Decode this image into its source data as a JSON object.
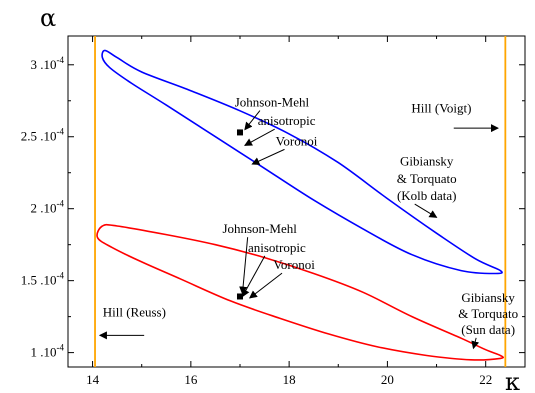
{
  "chart_data": {
    "type": "line",
    "xlabel": "κ",
    "ylabel": "α",
    "xlim": [
      13.5,
      22.8
    ],
    "ylim": [
      9e-05,
      0.00032
    ],
    "x_ticks": [
      {
        "value": 14,
        "label": "14"
      },
      {
        "value": 16,
        "label": "16"
      },
      {
        "value": 18,
        "label": "18"
      },
      {
        "value": 20,
        "label": "20"
      },
      {
        "value": 22,
        "label": "22"
      }
    ],
    "y_ticks": [
      {
        "value": 0.0001,
        "mantissa": "1",
        "exp": "-4"
      },
      {
        "value": 0.00015,
        "mantissa": "1.5",
        "exp": "-4"
      },
      {
        "value": 0.0002,
        "mantissa": "2",
        "exp": "-4"
      },
      {
        "value": 0.00025,
        "mantissa": "2.5",
        "exp": "-4"
      },
      {
        "value": 0.0003,
        "mantissa": "3",
        "exp": "-4"
      }
    ],
    "grid": false,
    "bounds": [
      {
        "name": "Hill (Reuss)",
        "x": 14.05,
        "color": "#FFA500"
      },
      {
        "name": "Hill (Voigt)",
        "x": 22.4,
        "color": "#FFA500"
      }
    ],
    "series": [
      {
        "name": "Gibiansky & Torquato (Kolb data)",
        "color": "#0000FF",
        "points": [
          [
            14.2,
            0.000305
          ],
          [
            14.25,
            0.00031
          ],
          [
            14.5,
            0.000305
          ],
          [
            15,
            0.000295
          ],
          [
            16,
            0.000282
          ],
          [
            17,
            0.000268
          ],
          [
            18,
            0.000252
          ],
          [
            19,
            0.000232
          ],
          [
            20,
            0.000207
          ],
          [
            21,
            0.000183
          ],
          [
            21.8,
            0.000165
          ],
          [
            22.3,
            0.000157
          ],
          [
            22.2,
            0.000155
          ],
          [
            21.5,
            0.000157
          ],
          [
            20.5,
            0.000168
          ],
          [
            19.5,
            0.000186
          ],
          [
            18.5,
            0.000206
          ],
          [
            17.5,
            0.000228
          ],
          [
            16.5,
            0.00025
          ],
          [
            15.5,
            0.000272
          ],
          [
            14.8,
            0.000287
          ],
          [
            14.35,
            0.000298
          ],
          [
            14.2,
            0.000305
          ]
        ]
      },
      {
        "name": "Gibiansky & Torquato (Sun data)",
        "color": "#FF0000",
        "points": [
          [
            14.1,
            0.00018
          ],
          [
            14.2,
            0.000188
          ],
          [
            14.5,
            0.000188
          ],
          [
            15.5,
            0.000182
          ],
          [
            16.5,
            0.000175
          ],
          [
            17.5,
            0.000166
          ],
          [
            18.5,
            0.000155
          ],
          [
            19.5,
            0.000142
          ],
          [
            20.5,
            0.000125
          ],
          [
            21.5,
            0.00011
          ],
          [
            22,
            0.000102
          ],
          [
            22.3,
            9.8e-05
          ],
          [
            22.3,
            9.6e-05
          ],
          [
            21.7,
            9.5e-05
          ],
          [
            20.8,
            9.8e-05
          ],
          [
            19.8,
            0.000104
          ],
          [
            18.8,
            0.000113
          ],
          [
            17.8,
            0.000124
          ],
          [
            16.8,
            0.000136
          ],
          [
            15.8,
            0.000151
          ],
          [
            15,
            0.000163
          ],
          [
            14.4,
            0.000173
          ],
          [
            14.1,
            0.00018
          ]
        ]
      }
    ],
    "markers": [
      {
        "name": "Johnson-Mehl",
        "x": 17.0,
        "y": 0.000253
      },
      {
        "name": "Johnson-Mehl",
        "x": 17.0,
        "y": 0.000139
      }
    ],
    "annotations": [
      {
        "text": "Johnson-Mehl",
        "x": 17.65,
        "y": 0.000271,
        "ax": 17.1,
        "ay": 0.000255
      },
      {
        "text": "anisotropic",
        "x": 17.95,
        "y": 0.000258,
        "ax": 17.1,
        "ay": 0.000244
      },
      {
        "text": "Voronoi",
        "x": 18.15,
        "y": 0.000244,
        "ax": 17.25,
        "ay": 0.000231
      },
      {
        "text": "Gibiansky",
        "x": 20.8,
        "y": 0.00023,
        "ax": null,
        "ay": null
      },
      {
        "text": "& Torquato",
        "x": 20.8,
        "y": 0.000218,
        "ax": null,
        "ay": null
      },
      {
        "text": "(Kolb data)",
        "x": 20.8,
        "y": 0.000206,
        "ax": 21.0,
        "ay": 0.000194
      },
      {
        "text": "Hill (Voigt)",
        "x": 21.1,
        "y": 0.000267,
        "ax": 22.25,
        "ay": 0.000256,
        "arrow_from": [
          21.35,
          0.000256
        ]
      },
      {
        "text": "Johnson-Mehl",
        "x": 17.4,
        "y": 0.000183,
        "ax": 17.05,
        "ay": 0.000141
      },
      {
        "text": "anisotropic",
        "x": 17.75,
        "y": 0.00017,
        "ax": 17.05,
        "ay": 0.000139
      },
      {
        "text": "Voronoi",
        "x": 18.1,
        "y": 0.000158,
        "ax": 17.2,
        "ay": 0.000138
      },
      {
        "text": "Hill (Reuss)",
        "x": 14.85,
        "y": 0.000125,
        "ax": 14.15,
        "ay": 0.000112,
        "arrow_from": [
          15.05,
          0.000112
        ]
      },
      {
        "text": "Gibiansky",
        "x": 22.05,
        "y": 0.000135,
        "ax": null,
        "ay": null
      },
      {
        "text": "& Torquato",
        "x": 22.05,
        "y": 0.000124,
        "ax": null,
        "ay": null
      },
      {
        "text": "(Sun data)",
        "x": 22.05,
        "y": 0.000113,
        "ax": 21.75,
        "ay": 0.000103
      }
    ]
  }
}
